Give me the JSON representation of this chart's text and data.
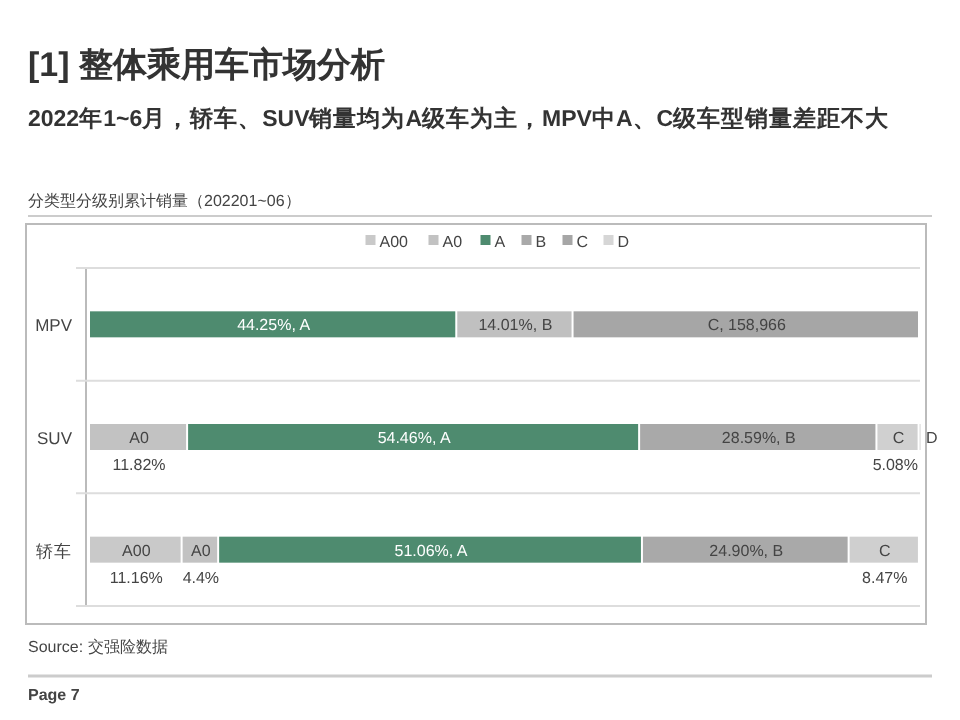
{
  "chart_data": {
    "type": "bar",
    "orientation": "horizontal",
    "stacked": true,
    "title": "[1] 整体乘用车市场分析",
    "subtitle": "2022年1~6月，轿车、SUV销量均为A级车为主，MPV中A、C级车型销量差距不大",
    "annotations": [
      "分类型分级别累计销量（202201~06）",
      "Source: 交强险数据",
      "Page 7",
      "C, 158,966"
    ],
    "categories": [
      "MPV",
      "SUV",
      "轿车"
    ],
    "xlim": [
      0,
      100
    ],
    "legend": "top",
    "series": [
      {
        "name": "A00",
        "color": "#c9c9c9",
        "values": [
          null,
          null,
          11.16
        ],
        "value_labels": [
          null,
          null,
          "A00\n11.16%"
        ]
      },
      {
        "name": "A0",
        "color": "#c2c2c2",
        "values": [
          null,
          11.82,
          4.4
        ],
        "value_labels": [
          null,
          "A0\n11.82%",
          "A0\n4.4%"
        ]
      },
      {
        "name": "A",
        "color": "#4e8b6f",
        "values": [
          44.25,
          54.46,
          51.06
        ],
        "value_labels": [
          "44.25%, A",
          "54.46%, A",
          "51.06%, A"
        ]
      },
      {
        "name": "B",
        "color": "#a9a9a9",
        "colors": [
          "#c0c0c0",
          "#a9a9a9",
          "#a9a9a9"
        ],
        "values": [
          14.01,
          28.59,
          24.9
        ],
        "value_labels": [
          "14.01%, B",
          "28.59%, B",
          "24.90%, B"
        ]
      },
      {
        "name": "C",
        "color": "#a6a6a6",
        "colors": [
          "#a6a6a6",
          "#d0d0d0",
          "#cfcfcf"
        ],
        "values": [
          41.74,
          5.08,
          8.47
        ],
        "value_labels": [
          null,
          "C\n5.08%",
          "C\n8.47%"
        ]
      },
      {
        "name": "D",
        "color": "#d6d6d6",
        "values": [
          null,
          0.05,
          null
        ],
        "value_labels": [
          null,
          "D",
          null
        ]
      }
    ]
  }
}
